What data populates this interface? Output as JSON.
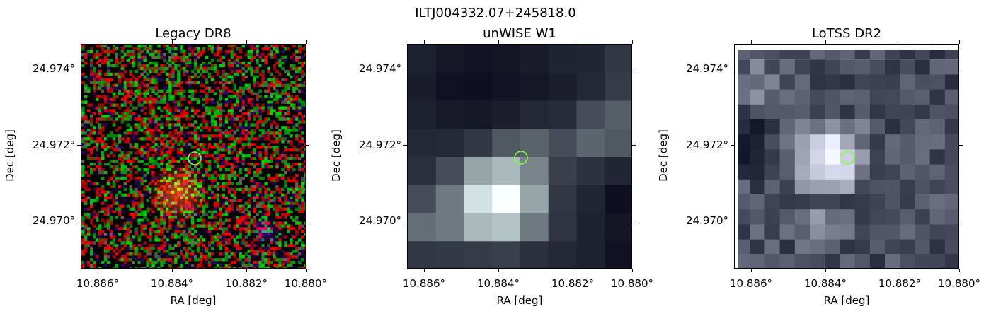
{
  "figure": {
    "title": "ILTJ004332.07+245818.0"
  },
  "panels": [
    {
      "title": "Legacy DR8",
      "xlabel": "RA [deg]",
      "ylabel": "Dec [deg]",
      "xticks": [
        "10.886°",
        "10.884°",
        "10.882°",
        "10.880°"
      ],
      "yticks": [
        "24.974°",
        "24.972°",
        "24.970°"
      ]
    },
    {
      "title": "unWISE W1",
      "xlabel": "RA [deg]",
      "ylabel": "Dec [deg]",
      "xticks": [
        "10.886°",
        "10.884°",
        "10.882°",
        "10.880°"
      ],
      "yticks": [
        "24.974°",
        "24.972°",
        "24.970°"
      ]
    },
    {
      "title": "LoTSS DR2",
      "xlabel": "RA [deg]",
      "ylabel": "Dec [deg]",
      "xticks": [
        "10.886°",
        "10.884°",
        "10.882°",
        "10.880°"
      ],
      "yticks": [
        "24.974°",
        "24.972°",
        "24.970°"
      ]
    }
  ],
  "colors": {
    "marker_circle": "#7fff3a",
    "axes": "#000000"
  },
  "icons": [
    "source-marker-circle"
  ]
}
